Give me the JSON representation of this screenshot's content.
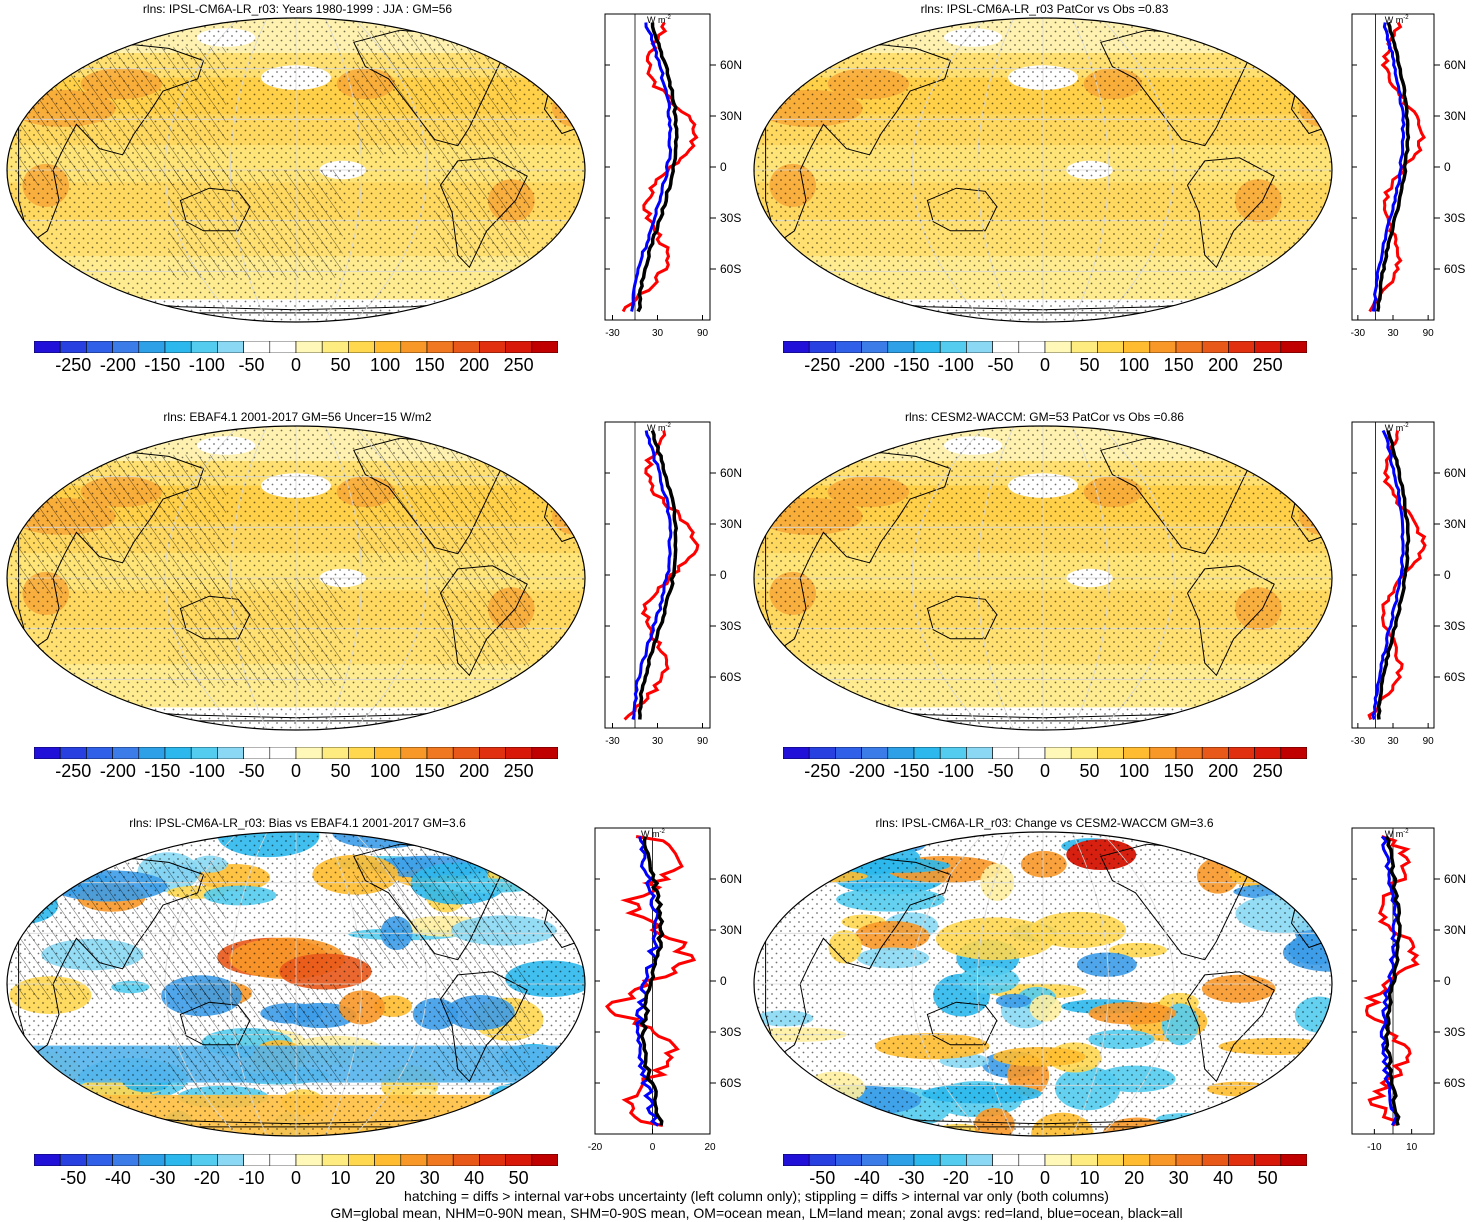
{
  "panels": [
    {
      "id": "p1",
      "title": "rlns: IPSL-CM6A-LR_r03: Years 1980-1999 : JJA : GM=56",
      "variant": "clim",
      "hatch": true,
      "zonal_x_ticks": [
        "-30",
        "30",
        "90"
      ],
      "zonal_x_range": [
        -40,
        100
      ],
      "scale": "abs"
    },
    {
      "id": "p2",
      "title": "rlns: IPSL-CM6A-LR_r03 PatCor vs Obs =0.83",
      "variant": "clim",
      "hatch": false,
      "zonal_x_ticks": [
        "-30",
        "30",
        "90"
      ],
      "zonal_x_range": [
        -40,
        100
      ],
      "scale": "abs"
    },
    {
      "id": "p3",
      "title": "rlns: EBAF4.1 2001-2017 GM=56 Uncer=15 W/m2",
      "variant": "clim",
      "hatch": true,
      "zonal_x_ticks": [
        "-30",
        "30",
        "90"
      ],
      "zonal_x_range": [
        -40,
        100
      ],
      "scale": "abs"
    },
    {
      "id": "p4",
      "title": "rlns: CESM2-WACCM: GM=53 PatCor vs Obs =0.86",
      "variant": "clim",
      "hatch": false,
      "zonal_x_ticks": [
        "-30",
        "30",
        "90"
      ],
      "zonal_x_range": [
        -40,
        100
      ],
      "scale": "abs"
    },
    {
      "id": "p5",
      "title": "rlns: IPSL-CM6A-LR_r03: Bias vs EBAF4.1 2001-2017 GM=3.6",
      "variant": "bias",
      "hatch": true,
      "zonal_x_ticks": [
        "-20",
        "0",
        "20"
      ],
      "zonal_x_range": [
        -20,
        20
      ],
      "scale": "diff"
    },
    {
      "id": "p6",
      "title": "rlns: IPSL-CM6A-LR_r03: Change vs CESM2-WACCM GM=3.6",
      "variant": "change",
      "hatch": false,
      "zonal_x_ticks": [
        "-10",
        "10"
      ],
      "zonal_x_range": [
        -22,
        22
      ],
      "scale": "diff"
    }
  ],
  "zonal_lat_labels": [
    "60N",
    "30N",
    "0",
    "30S",
    "60S"
  ],
  "zonal_unit": "W m",
  "zonal_unit_exp": "-2",
  "colorbars": {
    "abs": {
      "labels": [
        "-250",
        "-200",
        "-150",
        "-100",
        "-50",
        "0",
        "50",
        "100",
        "150",
        "200",
        "250"
      ]
    },
    "diff": {
      "labels": [
        "-50",
        "-40",
        "-30",
        "-20",
        "-10",
        "0",
        "10",
        "20",
        "30",
        "40",
        "50"
      ]
    }
  },
  "palette": [
    "#2010d8",
    "#2840e0",
    "#3060e8",
    "#3c7ce8",
    "#2ea0e8",
    "#2cb8ec",
    "#54ccf0",
    "#8ad8f4",
    "#ffffff",
    "#ffffff",
    "#fff8b8",
    "#ffec80",
    "#ffd850",
    "#ffbc30",
    "#f89828",
    "#f07820",
    "#e85818",
    "#e03010",
    "#d81808",
    "#c00000"
  ],
  "footer": {
    "line1": "hatching = diffs > internal var+obs uncertainty (left column only); stippling = diffs > internal var only (both columns)",
    "line2": "GM=global mean, NHM=0-90N mean, SHM=0-90S mean, OM=ocean mean, LM=land mean; zonal avgs: red=land, blue=ocean, black=all"
  },
  "legend_colors": {
    "land": "#ff0000",
    "ocean": "#0000ff",
    "all": "#000000"
  }
}
